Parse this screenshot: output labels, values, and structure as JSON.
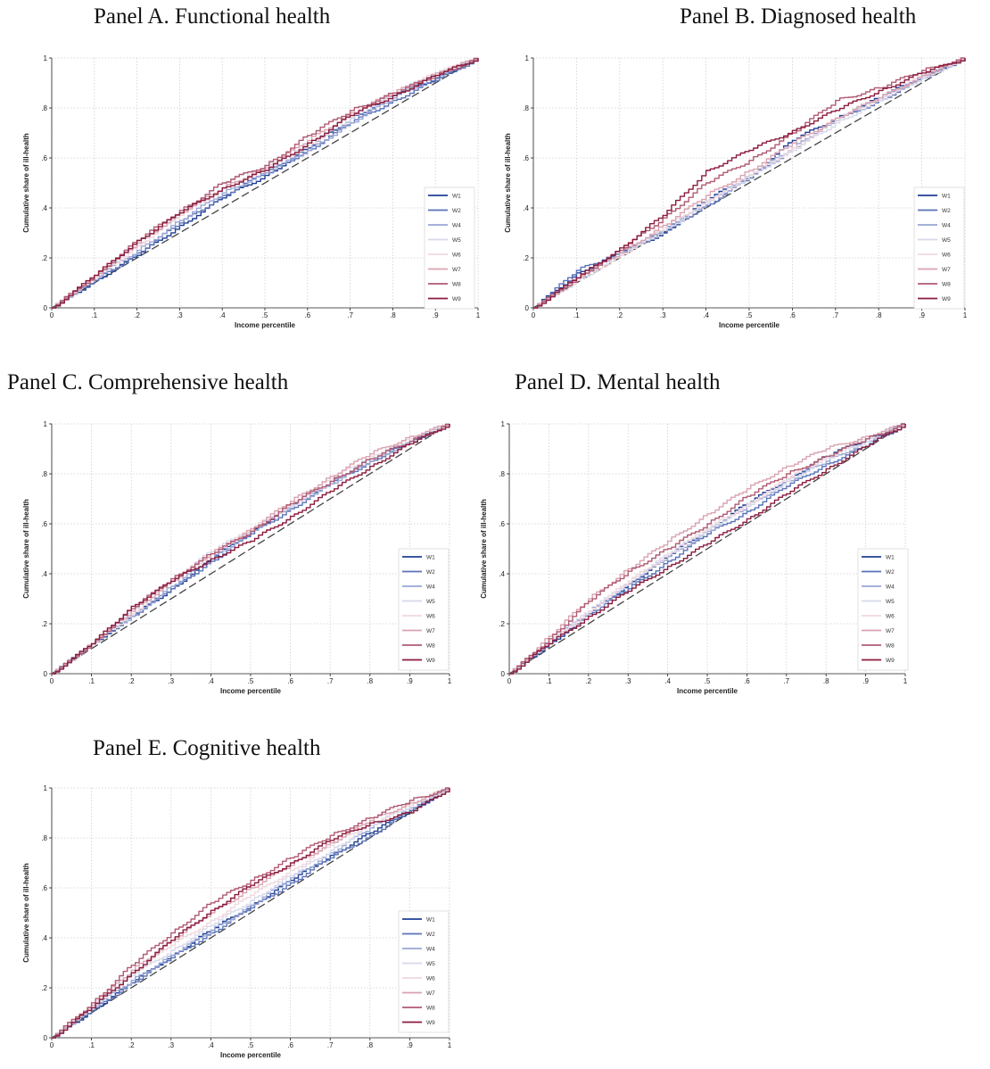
{
  "chart_data": [
    {
      "type": "line",
      "title": "Panel A. Functional health",
      "xlabel": "Income percentile",
      "ylabel": "Cumulative share of ill-health",
      "xlim": [
        0,
        1
      ],
      "ylim": [
        0,
        1
      ],
      "xticks": [
        "0",
        ".1",
        ".2",
        ".3",
        ".4",
        ".5",
        ".6",
        ".7",
        ".8",
        ".9",
        "1"
      ],
      "yticks": [
        "0",
        ".2",
        ".4",
        ".6",
        ".8",
        "1"
      ],
      "grid": true,
      "legend_position": "right",
      "equality_line": true,
      "x": [
        0,
        0.1,
        0.2,
        0.3,
        0.4,
        0.5,
        0.6,
        0.7,
        0.8,
        0.9,
        1
      ],
      "series": [
        {
          "name": "W1",
          "values": [
            0,
            0.11,
            0.21,
            0.33,
            0.44,
            0.53,
            0.64,
            0.76,
            0.85,
            0.92,
            1
          ]
        },
        {
          "name": "W2",
          "values": [
            0,
            0.11,
            0.22,
            0.34,
            0.45,
            0.54,
            0.63,
            0.74,
            0.83,
            0.91,
            1
          ]
        },
        {
          "name": "W4",
          "values": [
            0,
            0.12,
            0.23,
            0.35,
            0.46,
            0.54,
            0.63,
            0.74,
            0.84,
            0.93,
            1
          ]
        },
        {
          "name": "W5",
          "values": [
            0,
            0.13,
            0.25,
            0.38,
            0.5,
            0.57,
            0.65,
            0.76,
            0.86,
            0.94,
            1
          ]
        },
        {
          "name": "W6",
          "values": [
            0,
            0.12,
            0.25,
            0.37,
            0.48,
            0.56,
            0.65,
            0.77,
            0.86,
            0.94,
            1
          ]
        },
        {
          "name": "W7",
          "values": [
            0,
            0.13,
            0.26,
            0.38,
            0.48,
            0.56,
            0.67,
            0.78,
            0.86,
            0.94,
            1
          ]
        },
        {
          "name": "W8",
          "values": [
            0,
            0.13,
            0.27,
            0.39,
            0.5,
            0.57,
            0.69,
            0.79,
            0.86,
            0.93,
            1
          ]
        },
        {
          "name": "W9",
          "values": [
            0,
            0.13,
            0.27,
            0.38,
            0.48,
            0.55,
            0.66,
            0.77,
            0.85,
            0.93,
            1
          ]
        }
      ]
    },
    {
      "type": "line",
      "title": "Panel B. Diagnosed health",
      "xlabel": "Income percentile",
      "ylabel": "Cumulative share of ill-health",
      "xlim": [
        0,
        1
      ],
      "ylim": [
        0,
        1
      ],
      "xticks": [
        "0",
        ".1",
        ".2",
        ".3",
        ".4",
        ".5",
        ".6",
        ".7",
        ".8",
        ".9",
        "1"
      ],
      "yticks": [
        "0",
        ".2",
        ".4",
        ".6",
        ".8",
        "1"
      ],
      "grid": true,
      "legend_position": "right",
      "equality_line": true,
      "x": [
        0,
        0.1,
        0.2,
        0.3,
        0.4,
        0.5,
        0.6,
        0.7,
        0.8,
        0.9,
        1
      ],
      "series": [
        {
          "name": "W1",
          "values": [
            0,
            0.14,
            0.22,
            0.3,
            0.43,
            0.53,
            0.67,
            0.76,
            0.84,
            0.93,
            1
          ]
        },
        {
          "name": "W2",
          "values": [
            0,
            0.15,
            0.22,
            0.31,
            0.41,
            0.52,
            0.64,
            0.75,
            0.83,
            0.92,
            1
          ]
        },
        {
          "name": "W4",
          "values": [
            0,
            0.12,
            0.22,
            0.31,
            0.42,
            0.53,
            0.64,
            0.76,
            0.84,
            0.92,
            1
          ]
        },
        {
          "name": "W5",
          "values": [
            0,
            0.11,
            0.21,
            0.31,
            0.42,
            0.53,
            0.63,
            0.74,
            0.83,
            0.92,
            1
          ]
        },
        {
          "name": "W6",
          "values": [
            0,
            0.11,
            0.21,
            0.32,
            0.43,
            0.53,
            0.64,
            0.75,
            0.84,
            0.93,
            1
          ]
        },
        {
          "name": "W7",
          "values": [
            0,
            0.12,
            0.22,
            0.33,
            0.45,
            0.55,
            0.66,
            0.76,
            0.84,
            0.93,
            1
          ]
        },
        {
          "name": "W8",
          "values": [
            0,
            0.12,
            0.23,
            0.36,
            0.5,
            0.59,
            0.7,
            0.83,
            0.88,
            0.95,
            1
          ]
        },
        {
          "name": "W9",
          "values": [
            0,
            0.12,
            0.24,
            0.37,
            0.55,
            0.63,
            0.71,
            0.79,
            0.87,
            0.94,
            1
          ]
        }
      ]
    },
    {
      "type": "line",
      "title": "Panel C. Comprehensive health",
      "xlabel": "Income percentile",
      "ylabel": "Cumulative share of ill-health",
      "xlim": [
        0,
        1
      ],
      "ylim": [
        0,
        1
      ],
      "xticks": [
        "0",
        ".1",
        ".2",
        ".3",
        ".4",
        ".5",
        ".6",
        ".7",
        ".8",
        ".9",
        "1"
      ],
      "yticks": [
        "0",
        ".2",
        ".4",
        ".6",
        ".8",
        "1"
      ],
      "grid": true,
      "legend_position": "right",
      "equality_line": true,
      "x": [
        0,
        0.1,
        0.2,
        0.3,
        0.4,
        0.5,
        0.6,
        0.7,
        0.8,
        0.9,
        1
      ],
      "series": [
        {
          "name": "W1",
          "values": [
            0,
            0.12,
            0.23,
            0.34,
            0.46,
            0.57,
            0.67,
            0.77,
            0.86,
            0.93,
            1
          ]
        },
        {
          "name": "W2",
          "values": [
            0,
            0.12,
            0.23,
            0.34,
            0.45,
            0.56,
            0.66,
            0.76,
            0.85,
            0.93,
            1
          ]
        },
        {
          "name": "W4",
          "values": [
            0,
            0.12,
            0.23,
            0.35,
            0.46,
            0.57,
            0.67,
            0.76,
            0.85,
            0.93,
            1
          ]
        },
        {
          "name": "W5",
          "values": [
            0,
            0.12,
            0.25,
            0.38,
            0.49,
            0.58,
            0.67,
            0.77,
            0.86,
            0.94,
            1
          ]
        },
        {
          "name": "W6",
          "values": [
            0,
            0.12,
            0.24,
            0.37,
            0.48,
            0.58,
            0.68,
            0.78,
            0.87,
            0.94,
            1
          ]
        },
        {
          "name": "W7",
          "values": [
            0,
            0.12,
            0.25,
            0.37,
            0.48,
            0.58,
            0.69,
            0.79,
            0.88,
            0.95,
            1
          ]
        },
        {
          "name": "W8",
          "values": [
            0,
            0.12,
            0.26,
            0.38,
            0.48,
            0.57,
            0.68,
            0.77,
            0.86,
            0.93,
            1
          ]
        },
        {
          "name": "W9",
          "values": [
            0,
            0.12,
            0.27,
            0.37,
            0.46,
            0.53,
            0.63,
            0.73,
            0.83,
            0.92,
            1
          ]
        }
      ]
    },
    {
      "type": "line",
      "title": "Panel D. Mental health",
      "xlabel": "Income percentile",
      "ylabel": "Cumulative share of ill-health",
      "xlim": [
        0,
        1
      ],
      "ylim": [
        0,
        1
      ],
      "xticks": [
        "0",
        ".1",
        ".2",
        ".3",
        ".4",
        ".5",
        ".6",
        ".7",
        ".8",
        ".9",
        "1"
      ],
      "yticks": [
        "0",
        ".2",
        ".4",
        ".6",
        ".8",
        "1"
      ],
      "grid": true,
      "legend_position": "right",
      "equality_line": true,
      "x": [
        0,
        0.1,
        0.2,
        0.3,
        0.4,
        0.5,
        0.6,
        0.7,
        0.8,
        0.9,
        1
      ],
      "series": [
        {
          "name": "W1",
          "values": [
            0,
            0.12,
            0.24,
            0.36,
            0.47,
            0.58,
            0.68,
            0.78,
            0.87,
            0.94,
            1
          ]
        },
        {
          "name": "W2",
          "values": [
            0,
            0.12,
            0.24,
            0.34,
            0.45,
            0.56,
            0.65,
            0.75,
            0.84,
            0.91,
            1
          ]
        },
        {
          "name": "W4",
          "values": [
            0,
            0.13,
            0.25,
            0.36,
            0.47,
            0.57,
            0.67,
            0.77,
            0.85,
            0.93,
            1
          ]
        },
        {
          "name": "W5",
          "values": [
            0,
            0.13,
            0.25,
            0.37,
            0.48,
            0.58,
            0.67,
            0.77,
            0.86,
            0.93,
            1
          ]
        },
        {
          "name": "W6",
          "values": [
            0,
            0.13,
            0.25,
            0.37,
            0.48,
            0.58,
            0.68,
            0.78,
            0.87,
            0.94,
            1
          ]
        },
        {
          "name": "W7",
          "values": [
            0,
            0.15,
            0.3,
            0.42,
            0.53,
            0.64,
            0.74,
            0.83,
            0.9,
            0.95,
            1
          ]
        },
        {
          "name": "W8",
          "values": [
            0,
            0.14,
            0.29,
            0.41,
            0.5,
            0.6,
            0.71,
            0.8,
            0.87,
            0.94,
            1
          ]
        },
        {
          "name": "W9",
          "values": [
            0,
            0.12,
            0.23,
            0.33,
            0.43,
            0.52,
            0.62,
            0.72,
            0.82,
            0.91,
            1
          ]
        }
      ]
    },
    {
      "type": "line",
      "title": "Panel E. Cognitive health",
      "xlabel": "Income percentile",
      "ylabel": "Cumulative share of ill-health",
      "xlim": [
        0,
        1
      ],
      "ylim": [
        0,
        1
      ],
      "xticks": [
        "0",
        ".1",
        ".2",
        ".3",
        ".4",
        ".5",
        ".6",
        ".7",
        ".8",
        ".9",
        "1"
      ],
      "yticks": [
        "0",
        ".2",
        ".4",
        ".6",
        ".8",
        "1"
      ],
      "grid": true,
      "legend_position": "right",
      "equality_line": true,
      "x": [
        0,
        0.1,
        0.2,
        0.3,
        0.4,
        0.5,
        0.6,
        0.7,
        0.8,
        0.9,
        1
      ],
      "series": [
        {
          "name": "W1",
          "values": [
            0,
            0.11,
            0.22,
            0.33,
            0.43,
            0.53,
            0.63,
            0.73,
            0.82,
            0.91,
            1
          ]
        },
        {
          "name": "W2",
          "values": [
            0,
            0.11,
            0.22,
            0.32,
            0.42,
            0.52,
            0.62,
            0.72,
            0.81,
            0.91,
            1
          ]
        },
        {
          "name": "W4",
          "values": [
            0,
            0.12,
            0.23,
            0.33,
            0.43,
            0.53,
            0.64,
            0.74,
            0.84,
            0.92,
            1
          ]
        },
        {
          "name": "W5",
          "values": [
            0,
            0.13,
            0.25,
            0.35,
            0.45,
            0.55,
            0.65,
            0.75,
            0.85,
            0.93,
            1
          ]
        },
        {
          "name": "W6",
          "values": [
            0,
            0.13,
            0.26,
            0.37,
            0.47,
            0.57,
            0.67,
            0.77,
            0.86,
            0.93,
            1
          ]
        },
        {
          "name": "W7",
          "values": [
            0,
            0.13,
            0.27,
            0.39,
            0.5,
            0.6,
            0.69,
            0.78,
            0.87,
            0.94,
            1
          ]
        },
        {
          "name": "W8",
          "values": [
            0,
            0.14,
            0.29,
            0.42,
            0.54,
            0.63,
            0.72,
            0.81,
            0.88,
            0.95,
            1
          ]
        },
        {
          "name": "W9",
          "values": [
            0,
            0.12,
            0.26,
            0.39,
            0.51,
            0.61,
            0.7,
            0.79,
            0.86,
            0.9,
            1
          ]
        }
      ]
    }
  ],
  "colors": {
    "W1": "#1f3f94",
    "W2": "#5a72b8",
    "W4": "#9aa6d4",
    "W5": "#d7d9ec",
    "W6": "#efd8de",
    "W7": "#d9a3b0",
    "W8": "#b05a72",
    "W9": "#8b1a3c",
    "equality": "#444444",
    "grid": "#cfcfcf"
  }
}
